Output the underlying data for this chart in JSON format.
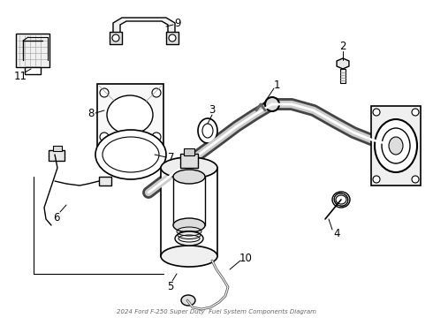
{
  "title": "2024 Ford F-250 Super Duty  Fuel System Components Diagram",
  "bg_color": "#ffffff",
  "line_color": "#000000",
  "fig_width": 4.9,
  "fig_height": 3.6,
  "dpi": 100
}
